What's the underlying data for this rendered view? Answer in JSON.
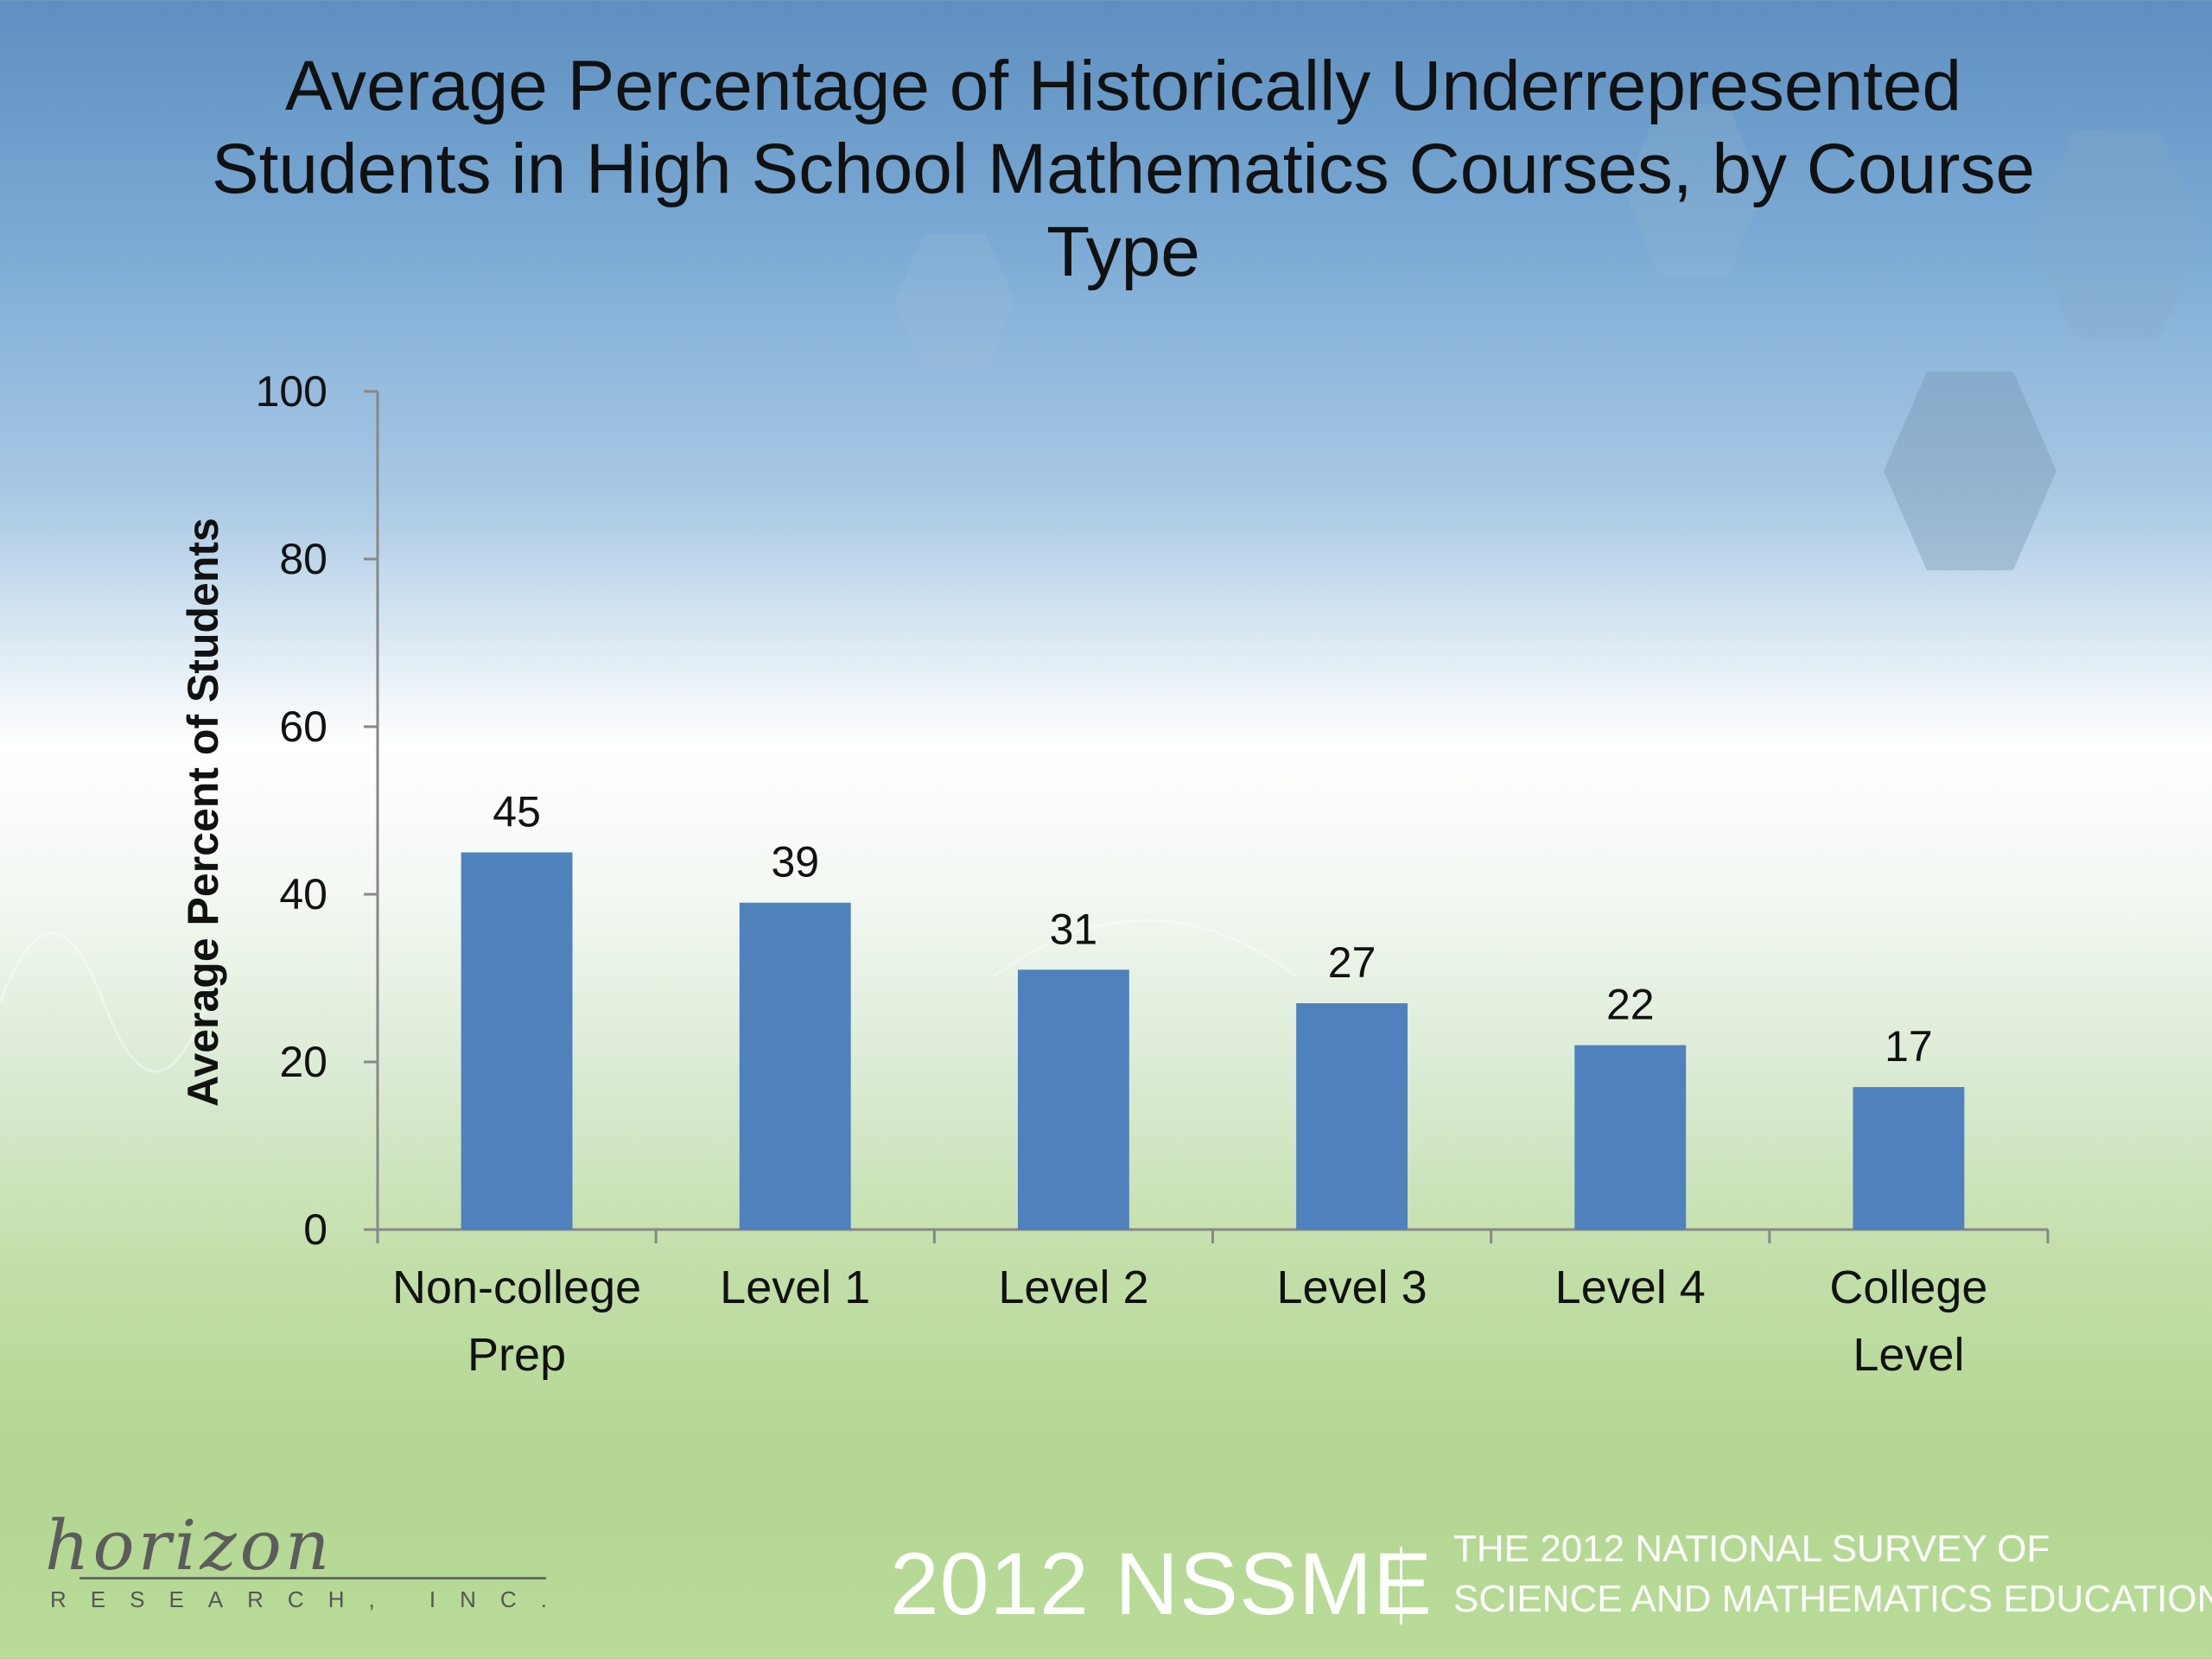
{
  "slide": {
    "footer": {
      "main": "2012 NSSME",
      "line1": "THE 2012 NATIONAL SURVEY OF",
      "line2": "SCIENCE AND MATHEMATICS EDUCATION"
    },
    "logo": {
      "script": "horizon",
      "sub": "RESEARCH, INC."
    }
  },
  "chart_data": {
    "type": "bar",
    "title": "Average Percentage of Historically Underrepresented\nStudents in High School Mathematics Courses, by Course\nType",
    "xlabel": "",
    "ylabel": "Average Percent of Students",
    "categories": [
      "Non-college Prep",
      "Level 1",
      "Level 2",
      "Level 3",
      "Level 4",
      "College Level"
    ],
    "series": [
      {
        "values": [
          45,
          39,
          31,
          27,
          22,
          17
        ]
      }
    ],
    "ylim": [
      0,
      100
    ],
    "yticks": [
      0,
      20,
      40,
      60,
      80,
      100
    ],
    "data_labels": true,
    "legend": "none",
    "grid": false,
    "colors": {
      "bar": "#4f81bd",
      "axis": "#888888",
      "text": "#111111"
    }
  }
}
